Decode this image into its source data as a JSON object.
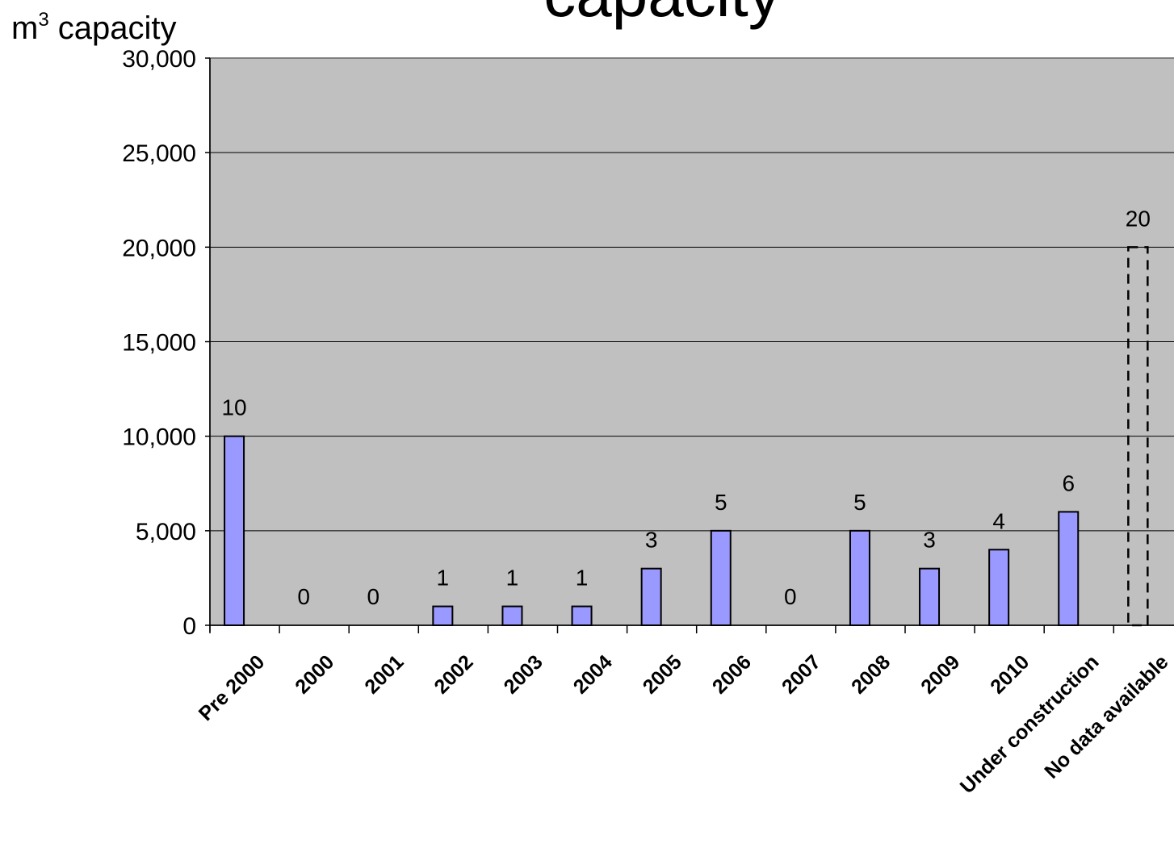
{
  "chart_data": {
    "type": "bar",
    "title": "capacity",
    "ylabel_base": "m",
    "ylabel_sup": "3",
    "ylabel_rest": " capacity",
    "ylim": [
      0,
      30000
    ],
    "y_ticks": [
      0,
      5000,
      10000,
      15000,
      20000,
      25000,
      30000
    ],
    "y_tick_labels": [
      "0",
      "5,000",
      "10,000",
      "15,000",
      "20,000",
      "25,000",
      "30,000"
    ],
    "grid": true,
    "categories": [
      "Pre 2000",
      "2000",
      "2001",
      "2002",
      "2003",
      "2004",
      "2005",
      "2006",
      "2007",
      "2008",
      "2009",
      "2010",
      "Under construction",
      "No data available"
    ],
    "values": [
      10000,
      0,
      0,
      1000,
      1000,
      1000,
      3000,
      5000,
      0,
      5000,
      3000,
      4000,
      6000,
      20000
    ],
    "data_labels": [
      "10",
      "0",
      "0",
      "1",
      "1",
      "1",
      "3",
      "5",
      "0",
      "5",
      "3",
      "4",
      "6",
      "20"
    ],
    "bar_color": "#9999ff",
    "plot_bg": "#c0c0c0",
    "last_bar_style": "dashed outline"
  }
}
